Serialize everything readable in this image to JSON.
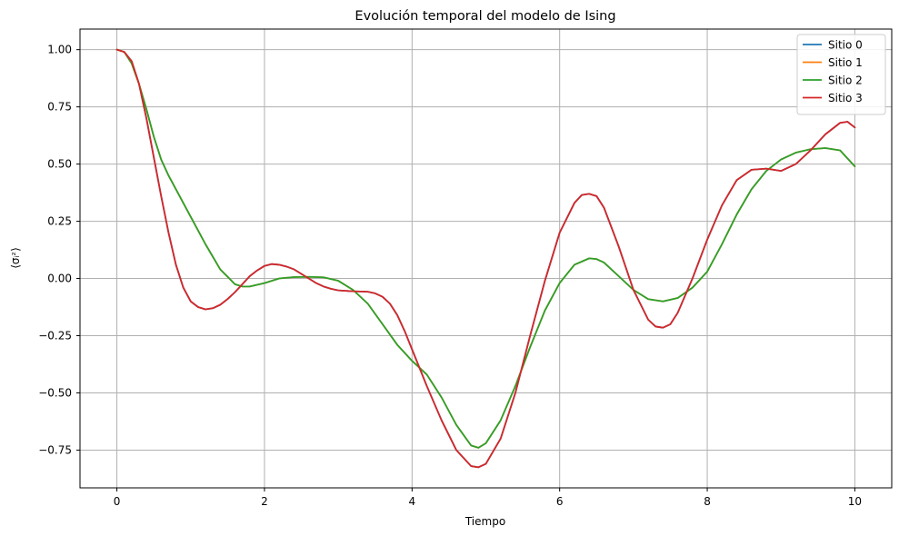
{
  "chart_data": {
    "type": "line",
    "title": "Evolución temporal del modelo de Ising",
    "xlabel": "Tiempo",
    "ylabel": "⟨σᵢᶻ⟩",
    "xlim": [
      -0.5,
      10.5
    ],
    "ylim": [
      -0.915,
      1.09
    ],
    "x_ticks": [
      0,
      2,
      4,
      6,
      8,
      10
    ],
    "y_ticks": [
      -0.75,
      -0.5,
      -0.25,
      0.0,
      0.25,
      0.5,
      0.75,
      1.0
    ],
    "y_tick_labels": [
      "−0.75",
      "−0.50",
      "−0.25",
      "0.00",
      "0.25",
      "0.50",
      "0.75",
      "1.00"
    ],
    "grid": true,
    "legend_position": "top-right",
    "series": [
      {
        "name": "Sitio 0",
        "color": "#1f77b4",
        "points": [
          [
            0,
            1.0
          ],
          [
            0.1,
            0.99
          ],
          [
            0.2,
            0.95
          ],
          [
            0.3,
            0.85
          ],
          [
            0.4,
            0.7
          ],
          [
            0.5,
            0.53
          ],
          [
            0.6,
            0.36
          ],
          [
            0.7,
            0.2
          ],
          [
            0.8,
            0.06
          ],
          [
            0.9,
            -0.04
          ],
          [
            1.0,
            -0.1
          ],
          [
            1.1,
            -0.125
          ],
          [
            1.2,
            -0.135
          ],
          [
            1.3,
            -0.13
          ],
          [
            1.4,
            -0.115
          ],
          [
            1.5,
            -0.09
          ],
          [
            1.6,
            -0.06
          ],
          [
            1.7,
            -0.025
          ],
          [
            1.8,
            0.01
          ],
          [
            1.9,
            0.035
          ],
          [
            2.0,
            0.055
          ],
          [
            2.1,
            0.063
          ],
          [
            2.2,
            0.06
          ],
          [
            2.3,
            0.052
          ],
          [
            2.4,
            0.04
          ],
          [
            2.5,
            0.02
          ],
          [
            2.6,
            0.0
          ],
          [
            2.7,
            -0.02
          ],
          [
            2.8,
            -0.035
          ],
          [
            2.9,
            -0.045
          ],
          [
            3.0,
            -0.052
          ],
          [
            3.2,
            -0.056
          ],
          [
            3.4,
            -0.058
          ],
          [
            3.5,
            -0.065
          ],
          [
            3.6,
            -0.08
          ],
          [
            3.7,
            -0.11
          ],
          [
            3.8,
            -0.16
          ],
          [
            3.9,
            -0.23
          ],
          [
            4.0,
            -0.31
          ],
          [
            4.2,
            -0.47
          ],
          [
            4.4,
            -0.62
          ],
          [
            4.6,
            -0.75
          ],
          [
            4.8,
            -0.82
          ],
          [
            4.9,
            -0.825
          ],
          [
            5.0,
            -0.81
          ],
          [
            5.2,
            -0.7
          ],
          [
            5.4,
            -0.5
          ],
          [
            5.6,
            -0.25
          ],
          [
            5.8,
            -0.01
          ],
          [
            6.0,
            0.2
          ],
          [
            6.2,
            0.33
          ],
          [
            6.3,
            0.365
          ],
          [
            6.4,
            0.37
          ],
          [
            6.5,
            0.36
          ],
          [
            6.6,
            0.31
          ],
          [
            6.8,
            0.14
          ],
          [
            7.0,
            -0.05
          ],
          [
            7.2,
            -0.18
          ],
          [
            7.3,
            -0.21
          ],
          [
            7.4,
            -0.215
          ],
          [
            7.5,
            -0.2
          ],
          [
            7.6,
            -0.15
          ],
          [
            7.8,
            0.0
          ],
          [
            8.0,
            0.17
          ],
          [
            8.2,
            0.32
          ],
          [
            8.4,
            0.43
          ],
          [
            8.6,
            0.475
          ],
          [
            8.8,
            0.48
          ],
          [
            9.0,
            0.47
          ],
          [
            9.2,
            0.5
          ],
          [
            9.4,
            0.56
          ],
          [
            9.6,
            0.63
          ],
          [
            9.8,
            0.68
          ],
          [
            9.9,
            0.685
          ],
          [
            10.0,
            0.66
          ]
        ]
      },
      {
        "name": "Sitio 1",
        "color": "#ff7f0e",
        "points": [
          [
            0,
            1.0
          ],
          [
            0.1,
            0.99
          ],
          [
            0.2,
            0.94
          ],
          [
            0.3,
            0.85
          ],
          [
            0.4,
            0.74
          ],
          [
            0.5,
            0.62
          ],
          [
            0.6,
            0.52
          ],
          [
            0.7,
            0.45
          ],
          [
            0.8,
            0.39
          ],
          [
            0.9,
            0.33
          ],
          [
            1.0,
            0.27
          ],
          [
            1.2,
            0.15
          ],
          [
            1.4,
            0.04
          ],
          [
            1.6,
            -0.025
          ],
          [
            1.7,
            -0.035
          ],
          [
            1.8,
            -0.035
          ],
          [
            2.0,
            -0.02
          ],
          [
            2.2,
            0.0
          ],
          [
            2.4,
            0.006
          ],
          [
            2.6,
            0.007
          ],
          [
            2.8,
            0.005
          ],
          [
            3.0,
            -0.01
          ],
          [
            3.2,
            -0.05
          ],
          [
            3.4,
            -0.11
          ],
          [
            3.6,
            -0.2
          ],
          [
            3.8,
            -0.29
          ],
          [
            4.0,
            -0.36
          ],
          [
            4.2,
            -0.42
          ],
          [
            4.4,
            -0.52
          ],
          [
            4.6,
            -0.64
          ],
          [
            4.8,
            -0.73
          ],
          [
            4.9,
            -0.74
          ],
          [
            5.0,
            -0.72
          ],
          [
            5.2,
            -0.62
          ],
          [
            5.4,
            -0.47
          ],
          [
            5.6,
            -0.3
          ],
          [
            5.8,
            -0.14
          ],
          [
            6.0,
            -0.02
          ],
          [
            6.2,
            0.06
          ],
          [
            6.4,
            0.088
          ],
          [
            6.5,
            0.085
          ],
          [
            6.6,
            0.07
          ],
          [
            6.8,
            0.01
          ],
          [
            7.0,
            -0.05
          ],
          [
            7.2,
            -0.09
          ],
          [
            7.4,
            -0.1
          ],
          [
            7.6,
            -0.085
          ],
          [
            7.8,
            -0.04
          ],
          [
            8.0,
            0.03
          ],
          [
            8.2,
            0.15
          ],
          [
            8.4,
            0.28
          ],
          [
            8.6,
            0.39
          ],
          [
            8.8,
            0.47
          ],
          [
            9.0,
            0.52
          ],
          [
            9.2,
            0.55
          ],
          [
            9.4,
            0.565
          ],
          [
            9.6,
            0.57
          ],
          [
            9.8,
            0.56
          ],
          [
            10.0,
            0.49
          ]
        ]
      },
      {
        "name": "Sitio 2",
        "color": "#2ca02c",
        "points": [
          [
            0,
            1.0
          ],
          [
            0.1,
            0.99
          ],
          [
            0.2,
            0.94
          ],
          [
            0.3,
            0.85
          ],
          [
            0.4,
            0.74
          ],
          [
            0.5,
            0.62
          ],
          [
            0.6,
            0.52
          ],
          [
            0.7,
            0.45
          ],
          [
            0.8,
            0.39
          ],
          [
            0.9,
            0.33
          ],
          [
            1.0,
            0.27
          ],
          [
            1.2,
            0.15
          ],
          [
            1.4,
            0.04
          ],
          [
            1.6,
            -0.025
          ],
          [
            1.7,
            -0.035
          ],
          [
            1.8,
            -0.035
          ],
          [
            2.0,
            -0.02
          ],
          [
            2.2,
            0.0
          ],
          [
            2.4,
            0.006
          ],
          [
            2.6,
            0.007
          ],
          [
            2.8,
            0.005
          ],
          [
            3.0,
            -0.01
          ],
          [
            3.2,
            -0.05
          ],
          [
            3.4,
            -0.11
          ],
          [
            3.6,
            -0.2
          ],
          [
            3.8,
            -0.29
          ],
          [
            4.0,
            -0.36
          ],
          [
            4.2,
            -0.42
          ],
          [
            4.4,
            -0.52
          ],
          [
            4.6,
            -0.64
          ],
          [
            4.8,
            -0.73
          ],
          [
            4.9,
            -0.74
          ],
          [
            5.0,
            -0.72
          ],
          [
            5.2,
            -0.62
          ],
          [
            5.4,
            -0.47
          ],
          [
            5.6,
            -0.3
          ],
          [
            5.8,
            -0.14
          ],
          [
            6.0,
            -0.02
          ],
          [
            6.2,
            0.06
          ],
          [
            6.4,
            0.088
          ],
          [
            6.5,
            0.085
          ],
          [
            6.6,
            0.07
          ],
          [
            6.8,
            0.01
          ],
          [
            7.0,
            -0.05
          ],
          [
            7.2,
            -0.09
          ],
          [
            7.4,
            -0.1
          ],
          [
            7.6,
            -0.085
          ],
          [
            7.8,
            -0.04
          ],
          [
            8.0,
            0.03
          ],
          [
            8.2,
            0.15
          ],
          [
            8.4,
            0.28
          ],
          [
            8.6,
            0.39
          ],
          [
            8.8,
            0.47
          ],
          [
            9.0,
            0.52
          ],
          [
            9.2,
            0.55
          ],
          [
            9.4,
            0.565
          ],
          [
            9.6,
            0.57
          ],
          [
            9.8,
            0.56
          ],
          [
            10.0,
            0.49
          ]
        ]
      },
      {
        "name": "Sitio 3",
        "color": "#d62728",
        "points": [
          [
            0,
            1.0
          ],
          [
            0.1,
            0.99
          ],
          [
            0.2,
            0.95
          ],
          [
            0.3,
            0.85
          ],
          [
            0.4,
            0.7
          ],
          [
            0.5,
            0.53
          ],
          [
            0.6,
            0.36
          ],
          [
            0.7,
            0.2
          ],
          [
            0.8,
            0.06
          ],
          [
            0.9,
            -0.04
          ],
          [
            1.0,
            -0.1
          ],
          [
            1.1,
            -0.125
          ],
          [
            1.2,
            -0.135
          ],
          [
            1.3,
            -0.13
          ],
          [
            1.4,
            -0.115
          ],
          [
            1.5,
            -0.09
          ],
          [
            1.6,
            -0.06
          ],
          [
            1.7,
            -0.025
          ],
          [
            1.8,
            0.01
          ],
          [
            1.9,
            0.035
          ],
          [
            2.0,
            0.055
          ],
          [
            2.1,
            0.063
          ],
          [
            2.2,
            0.06
          ],
          [
            2.3,
            0.052
          ],
          [
            2.4,
            0.04
          ],
          [
            2.5,
            0.02
          ],
          [
            2.6,
            0.0
          ],
          [
            2.7,
            -0.02
          ],
          [
            2.8,
            -0.035
          ],
          [
            2.9,
            -0.045
          ],
          [
            3.0,
            -0.052
          ],
          [
            3.2,
            -0.056
          ],
          [
            3.4,
            -0.058
          ],
          [
            3.5,
            -0.065
          ],
          [
            3.6,
            -0.08
          ],
          [
            3.7,
            -0.11
          ],
          [
            3.8,
            -0.16
          ],
          [
            3.9,
            -0.23
          ],
          [
            4.0,
            -0.31
          ],
          [
            4.2,
            -0.47
          ],
          [
            4.4,
            -0.62
          ],
          [
            4.6,
            -0.75
          ],
          [
            4.8,
            -0.82
          ],
          [
            4.9,
            -0.825
          ],
          [
            5.0,
            -0.81
          ],
          [
            5.2,
            -0.7
          ],
          [
            5.4,
            -0.5
          ],
          [
            5.6,
            -0.25
          ],
          [
            5.8,
            -0.01
          ],
          [
            6.0,
            0.2
          ],
          [
            6.2,
            0.33
          ],
          [
            6.3,
            0.365
          ],
          [
            6.4,
            0.37
          ],
          [
            6.5,
            0.36
          ],
          [
            6.6,
            0.31
          ],
          [
            6.8,
            0.14
          ],
          [
            7.0,
            -0.05
          ],
          [
            7.2,
            -0.18
          ],
          [
            7.3,
            -0.21
          ],
          [
            7.4,
            -0.215
          ],
          [
            7.5,
            -0.2
          ],
          [
            7.6,
            -0.15
          ],
          [
            7.8,
            0.0
          ],
          [
            8.0,
            0.17
          ],
          [
            8.2,
            0.32
          ],
          [
            8.4,
            0.43
          ],
          [
            8.6,
            0.475
          ],
          [
            8.8,
            0.48
          ],
          [
            9.0,
            0.47
          ],
          [
            9.2,
            0.5
          ],
          [
            9.4,
            0.56
          ],
          [
            9.6,
            0.63
          ],
          [
            9.8,
            0.68
          ],
          [
            9.9,
            0.685
          ],
          [
            10.0,
            0.66
          ]
        ]
      }
    ]
  }
}
